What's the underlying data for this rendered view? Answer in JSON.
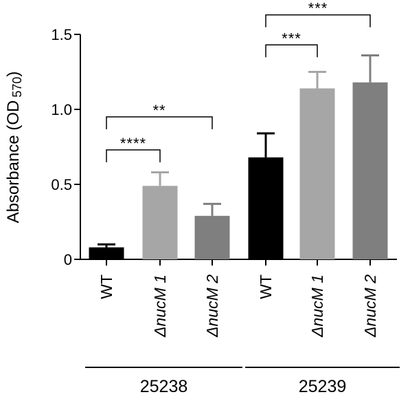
{
  "chart_data": {
    "type": "bar",
    "ylabel": "Absorbance (OD",
    "ylabel_sub": "570",
    "ylabel_close": ")",
    "ylim": [
      0,
      1.5
    ],
    "yticks": [
      {
        "value": 0,
        "label": "0"
      },
      {
        "value": 0.5,
        "label": "0.5"
      },
      {
        "value": 1.0,
        "label": "1.0"
      },
      {
        "value": 1.5,
        "label": "1.5"
      }
    ],
    "bars": [
      {
        "label": "WT",
        "italic": false,
        "value": 0.08,
        "error": 0.02,
        "color": "#000000"
      },
      {
        "label_prefix": "Δ",
        "label_italic": "nucM",
        "label_suffix": " 1",
        "italic": true,
        "value": 0.49,
        "error": 0.09,
        "color": "#a6a6a6"
      },
      {
        "label_prefix": "Δ",
        "label_italic": "nucM",
        "label_suffix": " 2",
        "italic": true,
        "value": 0.29,
        "error": 0.08,
        "color": "#7f7f7f"
      },
      {
        "label": "WT",
        "italic": false,
        "value": 0.68,
        "error": 0.16,
        "color": "#000000"
      },
      {
        "label_prefix": "Δ",
        "label_italic": "nucM",
        "label_suffix": " 1",
        "italic": true,
        "value": 1.14,
        "error": 0.11,
        "color": "#a6a6a6"
      },
      {
        "label_prefix": "Δ",
        "label_italic": "nucM",
        "label_suffix": " 2",
        "italic": true,
        "value": 1.18,
        "error": 0.18,
        "color": "#7f7f7f"
      }
    ],
    "groups": [
      {
        "label": "25238",
        "bars": [
          0,
          1,
          2
        ]
      },
      {
        "label": "25239",
        "bars": [
          3,
          4,
          5
        ]
      }
    ],
    "significance": [
      {
        "from": 0,
        "to": 1,
        "text": "****",
        "y": 0.73
      },
      {
        "from": 0,
        "to": 2,
        "text": "**",
        "y": 0.95
      },
      {
        "from": 3,
        "to": 4,
        "text": "***",
        "y": 1.43
      },
      {
        "from": 3,
        "to": 5,
        "text": "***",
        "y": 1.63
      }
    ]
  }
}
